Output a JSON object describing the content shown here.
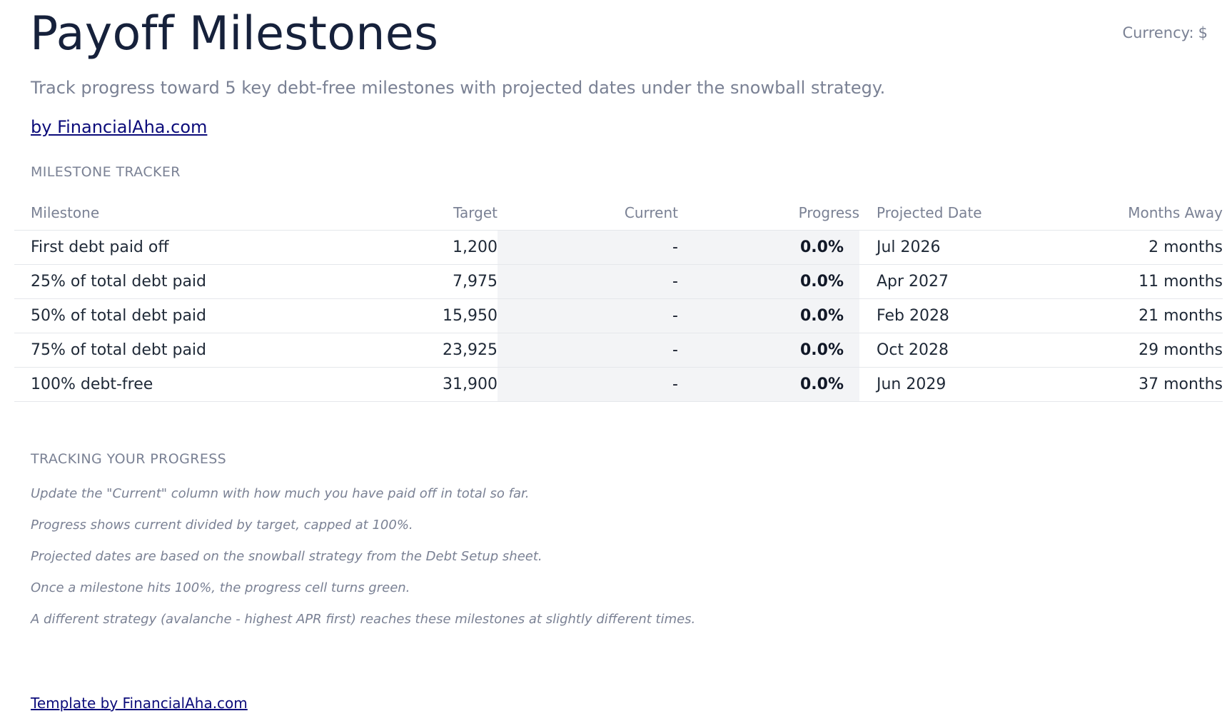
{
  "header": {
    "title": "Payoff Milestones",
    "currency_label": "Currency:",
    "currency_symbol": "$",
    "subtitle": "Track progress toward 5 key debt-free milestones with projected dates under the snowball strategy.",
    "byline": "by FinancialAha.com"
  },
  "tracker": {
    "section_title": "MILESTONE TRACKER",
    "columns": {
      "milestone": "Milestone",
      "target": "Target",
      "current": "Current",
      "progress": "Progress",
      "projected_date": "Projected Date",
      "months_away": "Months Away"
    },
    "rows": [
      {
        "milestone": "First debt paid off",
        "target": "1,200",
        "current": "-",
        "progress": "0.0%",
        "projected_date": "Jul 2026",
        "months_away": "2 months"
      },
      {
        "milestone": "25% of total debt paid",
        "target": "7,975",
        "current": "-",
        "progress": "0.0%",
        "projected_date": "Apr 2027",
        "months_away": "11 months"
      },
      {
        "milestone": "50% of total debt paid",
        "target": "15,950",
        "current": "-",
        "progress": "0.0%",
        "projected_date": "Feb 2028",
        "months_away": "21 months"
      },
      {
        "milestone": "75% of total debt paid",
        "target": "23,925",
        "current": "-",
        "progress": "0.0%",
        "projected_date": "Oct 2028",
        "months_away": "29 months"
      },
      {
        "milestone": "100% debt-free",
        "target": "31,900",
        "current": "-",
        "progress": "0.0%",
        "projected_date": "Jun 2029",
        "months_away": "37 months"
      }
    ]
  },
  "progress_notes": {
    "section_title": "TRACKING YOUR PROGRESS",
    "notes": [
      "Update the \"Current\" column with how much you have paid off in total so far.",
      "Progress shows current divided by target, capped at 100%.",
      "Projected dates are based on the snowball strategy from the Debt Setup sheet.",
      "Once a milestone hits 100%, the progress cell turns green.",
      "A different strategy (avalanche - highest APR first) reaches these milestones at slightly different times."
    ]
  },
  "footer": {
    "link": "Template by FinancialAha.com"
  },
  "colors": {
    "title": "#16213b",
    "muted": "#7a8194",
    "link": "#0b0b7a",
    "input_cell_bg": "#f3f4f6"
  }
}
